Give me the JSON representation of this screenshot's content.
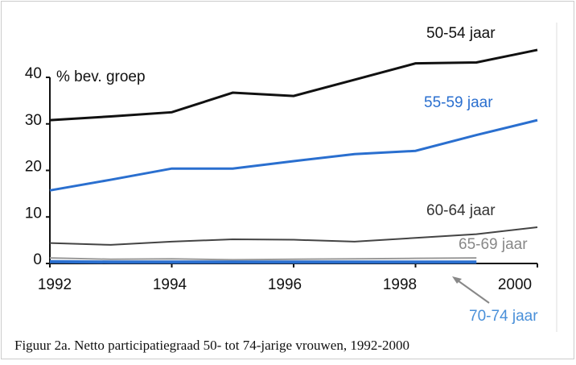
{
  "chart_data": {
    "type": "line",
    "y_axis_label": "% bev. groep",
    "caption": "Figuur 2a. Netto participatiegraad 50- tot 74-jarige vrouwen, 1992-2000",
    "x": [
      1992,
      1993,
      1994,
      1995,
      1996,
      1997,
      1998,
      1999,
      2000
    ],
    "xlim": [
      1992,
      2000
    ],
    "xticks": [
      1992,
      1994,
      1996,
      1998,
      2000
    ],
    "ylim": [
      0,
      40
    ],
    "yticks": [
      0,
      10,
      20,
      30,
      40
    ],
    "series": [
      {
        "name": "50-54 jaar",
        "color": "#111111",
        "values": [
          30.8,
          31.6,
          32.5,
          36.7,
          36.0,
          39.5,
          43.0,
          43.2,
          45.9
        ]
      },
      {
        "name": "55-59 jaar",
        "color": "#2a6fcf",
        "values": [
          15.7,
          18.0,
          20.4,
          20.4,
          22.0,
          23.5,
          24.2,
          27.6,
          30.8
        ]
      },
      {
        "name": "60-64 jaar",
        "color": "#444444",
        "values": [
          4.4,
          4.0,
          4.7,
          5.2,
          5.1,
          4.7,
          5.5,
          6.3,
          7.8
        ]
      },
      {
        "name": "65-69 jaar",
        "color": "#999999",
        "values": [
          1.2,
          0.9,
          1.0,
          0.8,
          0.9,
          1.0,
          1.1,
          1.2,
          null
        ]
      },
      {
        "name": "70-74 jaar",
        "color": "#2a6fcf",
        "values": [
          0.4,
          0.3,
          0.3,
          0.3,
          0.3,
          0.3,
          0.3,
          0.3,
          null
        ]
      }
    ]
  }
}
